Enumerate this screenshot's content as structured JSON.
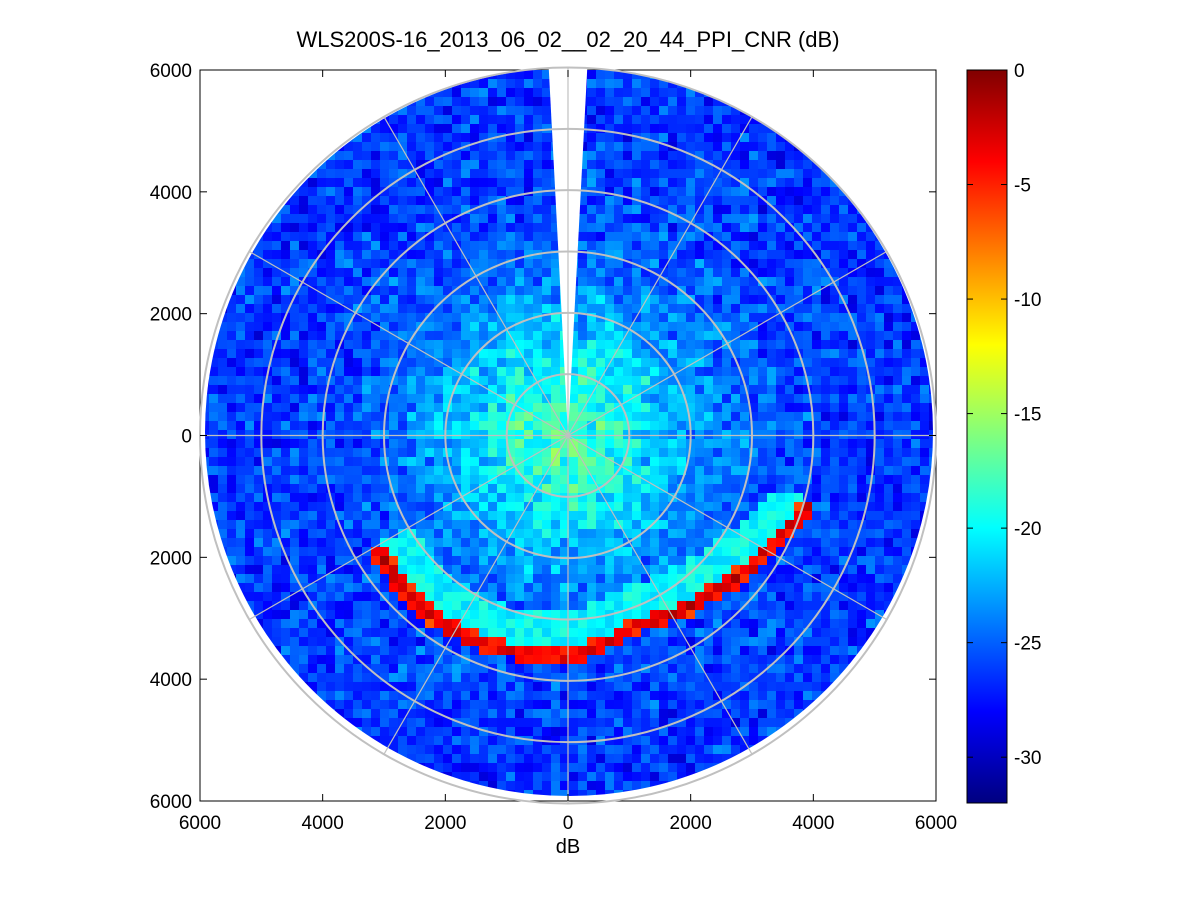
{
  "chart_data": {
    "type": "heatmap",
    "subtype": "polar-ppi",
    "title": "WLS200S-16_2013_06_02__02_20_44_PPI_CNR (dB)",
    "xlabel": "dB",
    "ylabel": "",
    "xlim": [
      -6000,
      6000
    ],
    "ylim": [
      -6000,
      6000
    ],
    "x_ticks": [
      -6000,
      -4000,
      -2000,
      0,
      2000,
      4000,
      6000
    ],
    "x_tick_labels": [
      "6000",
      "4000",
      "2000",
      "0",
      "2000",
      "4000",
      "6000"
    ],
    "y_ticks": [
      6000,
      4000,
      2000,
      0,
      -2000,
      -4000,
      -6000
    ],
    "y_tick_labels": [
      "6000",
      "4000",
      "2000",
      "0",
      "2000",
      "4000",
      "6000"
    ],
    "max_range": 6000,
    "range_rings": [
      1000,
      2000,
      3000,
      4000,
      5000,
      6000
    ],
    "spoke_angles_deg": [
      0,
      30,
      60,
      90,
      120,
      150,
      180,
      210,
      240,
      270,
      300,
      330
    ],
    "missing_sector_deg": [
      87,
      93
    ],
    "colorbar": {
      "clim": [
        -32,
        0
      ],
      "ticks": [
        0,
        -5,
        -10,
        -15,
        -20,
        -25,
        -30
      ],
      "tick_labels": [
        "0",
        "-5",
        "-10",
        "-15",
        "-20",
        "-25",
        "-30"
      ],
      "colormap": "jet"
    },
    "value_model": {
      "near_field_cnr_db": -17,
      "far_field_cnr_db": -26.5,
      "near_field_falloff_m": 2200,
      "strong_echo_arc": [
        {
          "angle_deg": 210,
          "range_m": 3600
        },
        {
          "angle_deg": 230,
          "range_m": 3700
        },
        {
          "angle_deg": 250,
          "range_m": 3650
        },
        {
          "angle_deg": 270,
          "range_m": 3600
        },
        {
          "angle_deg": 290,
          "range_m": 3300
        },
        {
          "angle_deg": 310,
          "range_m": 3450
        },
        {
          "angle_deg": 330,
          "range_m": 3750
        },
        {
          "angle_deg": 345,
          "range_m": 4100
        }
      ],
      "strong_echo_cnr_db": -2
    }
  }
}
